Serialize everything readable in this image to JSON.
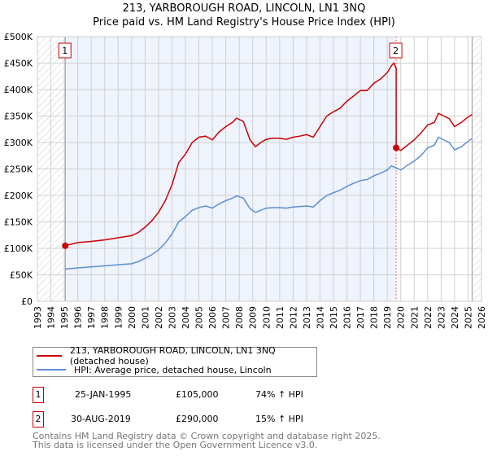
{
  "title_line1": "213, YARBOROUGH ROAD, LINCOLN, LN1 3NQ",
  "title_line2": "Price paid vs. HM Land Registry's House Price Index (HPI)",
  "chart_data": {
    "type": "line",
    "xlim": [
      1993,
      2026
    ],
    "ylim": [
      0,
      500000
    ],
    "yticks": [
      0,
      50000,
      100000,
      150000,
      200000,
      250000,
      300000,
      350000,
      400000,
      450000,
      500000
    ],
    "ytick_labels": [
      "£0",
      "£50K",
      "£100K",
      "£150K",
      "£200K",
      "£250K",
      "£300K",
      "£350K",
      "£400K",
      "£450K",
      "£500K"
    ],
    "xticks": [
      1993,
      1994,
      1995,
      1996,
      1997,
      1998,
      1999,
      2000,
      2001,
      2002,
      2003,
      2004,
      2005,
      2006,
      2007,
      2008,
      2009,
      2010,
      2011,
      2012,
      2013,
      2014,
      2015,
      2016,
      2017,
      2018,
      2019,
      2020,
      2021,
      2022,
      2023,
      2024,
      2025,
      2026
    ],
    "grid": true,
    "series": [
      {
        "name": "213, YARBOROUGH ROAD, LINCOLN, LN1 3NQ (detached house)",
        "color": "#cc0000",
        "x": [
          1995.07,
          1996,
          1997,
          1998,
          1999,
          2000,
          2000.5,
          2001,
          2001.5,
          2002,
          2002.5,
          2003,
          2003.5,
          2004,
          2004.5,
          2005,
          2005.5,
          2006,
          2006.5,
          2007,
          2007.5,
          2007.8,
          2008.3,
          2008.8,
          2009.2,
          2009.6,
          2010,
          2010.5,
          2011,
          2011.5,
          2012,
          2012.5,
          2013,
          2013.5,
          2014,
          2014.5,
          2015,
          2015.5,
          2016,
          2016.5,
          2017,
          2017.5,
          2018,
          2018.5,
          2019,
          2019.3,
          2019.5,
          2019.66,
          2019.66,
          2020,
          2020.5,
          2021,
          2021.5,
          2022,
          2022.5,
          2022.8,
          2023.2,
          2023.6,
          2024,
          2024.5,
          2025,
          2025.3
        ],
        "y": [
          105000,
          111000,
          113000,
          116000,
          120000,
          124000,
          130000,
          140000,
          152000,
          168000,
          190000,
          220000,
          262000,
          278000,
          300000,
          310000,
          312000,
          305000,
          320000,
          330000,
          338000,
          346000,
          340000,
          305000,
          292000,
          300000,
          306000,
          308000,
          308000,
          306000,
          310000,
          312000,
          315000,
          310000,
          330000,
          350000,
          358000,
          365000,
          378000,
          388000,
          398000,
          398000,
          412000,
          420000,
          432000,
          445000,
          450000,
          440000,
          290000,
          285000,
          295000,
          305000,
          318000,
          333000,
          338000,
          355000,
          350000,
          345000,
          330000,
          338000,
          348000,
          353000
        ]
      },
      {
        "name": "HPI: Average price, detached house, Lincoln",
        "color": "#5b8fd6",
        "x": [
          1995.07,
          1996,
          1997,
          1998,
          1999,
          2000,
          2000.5,
          2001,
          2001.5,
          2002,
          2002.5,
          2003,
          2003.5,
          2004,
          2004.5,
          2005,
          2005.5,
          2006,
          2006.5,
          2007,
          2007.5,
          2007.8,
          2008.3,
          2008.8,
          2009.2,
          2009.6,
          2010,
          2010.5,
          2011,
          2011.5,
          2012,
          2012.5,
          2013,
          2013.5,
          2014,
          2014.5,
          2015,
          2015.5,
          2016,
          2016.5,
          2017,
          2017.5,
          2018,
          2018.5,
          2019,
          2019.3,
          2019.66,
          2020,
          2020.5,
          2021,
          2021.5,
          2022,
          2022.5,
          2022.8,
          2023.2,
          2023.6,
          2024,
          2024.5,
          2025,
          2025.3
        ],
        "y": [
          61000,
          63000,
          65000,
          67000,
          69000,
          71000,
          75000,
          81000,
          88000,
          97000,
          110000,
          127000,
          150000,
          160000,
          172000,
          177000,
          180000,
          176000,
          184000,
          190000,
          195000,
          199000,
          195000,
          175000,
          168000,
          172000,
          176000,
          177000,
          177000,
          176000,
          178000,
          179000,
          180000,
          178000,
          190000,
          200000,
          205000,
          210000,
          217000,
          223000,
          228000,
          230000,
          237000,
          242000,
          248000,
          256000,
          252000,
          248000,
          257000,
          265000,
          275000,
          290000,
          295000,
          310000,
          305000,
          300000,
          286000,
          292000,
          302000,
          308000
        ]
      }
    ],
    "sales": [
      {
        "id": "1",
        "date": "25-JAN-1995",
        "x": 1995.07,
        "price": "£105,000",
        "value": 105000,
        "hpi": "74% ↑ HPI"
      },
      {
        "id": "2",
        "date": "30-AUG-2019",
        "x": 2019.66,
        "price": "£290,000",
        "value": 290000,
        "hpi": "15% ↑ HPI"
      }
    ],
    "data_end": 2025.3
  },
  "footer_line1": "Contains HM Land Registry data © Crown copyright and database right 2025.",
  "footer_line2": "This data is licensed under the Open Government Licence v3.0."
}
